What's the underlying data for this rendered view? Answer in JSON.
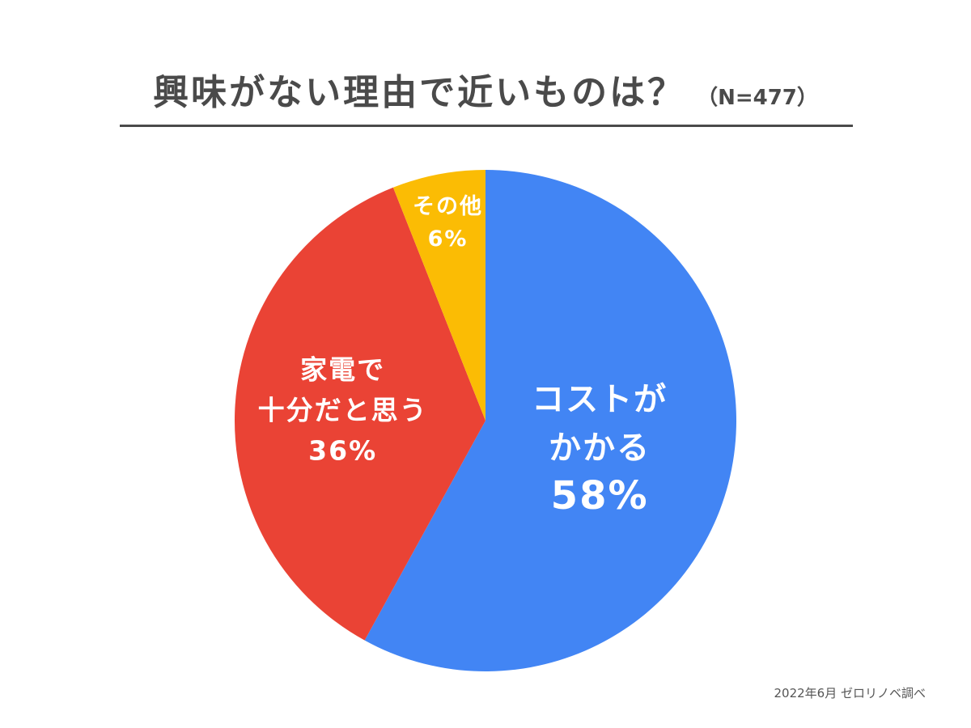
{
  "chart_data": {
    "type": "pie",
    "title": "興味がない理由で近いものは？",
    "subtitle": "（N=477）",
    "start_angle_deg": 0,
    "direction": "clockwise",
    "slices": [
      {
        "label_lines": [
          "コストが",
          "かかる"
        ],
        "value": 58,
        "value_label": "58%",
        "color": "#4285f4"
      },
      {
        "label_lines": [
          "家電で",
          "十分だと思う"
        ],
        "value": 36,
        "value_label": "36%",
        "color": "#ea4335"
      },
      {
        "label_lines": [
          "その他"
        ],
        "value": 6,
        "value_label": "6%",
        "color": "#fbbc04"
      }
    ]
  },
  "footnote": "2022年6月 ゼロリノベ調べ"
}
